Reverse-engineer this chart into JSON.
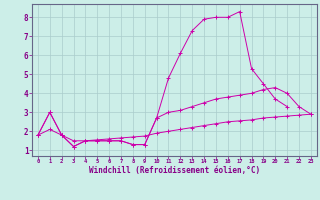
{
  "title": "",
  "xlabel": "Windchill (Refroidissement éolien,°C)",
  "ylabel": "",
  "bg_color": "#cceee8",
  "plot_bg_color": "#cceee8",
  "line_color": "#cc00aa",
  "grid_color": "#aacccc",
  "spine_color": "#666688",
  "label_color": "#880088",
  "xlim": [
    -0.5,
    23.5
  ],
  "ylim": [
    0.7,
    8.7
  ],
  "xticks": [
    0,
    1,
    2,
    3,
    4,
    5,
    6,
    7,
    8,
    9,
    10,
    11,
    12,
    13,
    14,
    15,
    16,
    17,
    18,
    19,
    20,
    21,
    22,
    23
  ],
  "yticks": [
    1,
    2,
    3,
    4,
    5,
    6,
    7,
    8
  ],
  "series": [
    {
      "x": [
        0,
        1,
        2,
        3,
        4,
        5,
        6,
        7,
        8,
        9,
        10,
        11,
        12,
        13,
        14,
        15,
        16,
        17,
        18,
        19,
        20,
        21
      ],
      "y": [
        1.8,
        3.0,
        1.8,
        1.2,
        1.5,
        1.5,
        1.5,
        1.5,
        1.3,
        1.3,
        2.7,
        4.8,
        6.1,
        7.3,
        7.9,
        8.0,
        8.0,
        8.3,
        5.3,
        4.5,
        3.7,
        3.3
      ]
    },
    {
      "x": [
        0,
        1,
        2,
        3,
        4,
        5,
        6,
        7,
        8,
        9,
        10,
        11,
        12,
        13,
        14,
        15,
        16,
        17,
        18,
        19,
        20,
        21,
        22,
        23
      ],
      "y": [
        1.8,
        3.0,
        1.8,
        1.2,
        1.5,
        1.5,
        1.5,
        1.5,
        1.3,
        1.3,
        2.7,
        3.0,
        3.1,
        3.3,
        3.5,
        3.7,
        3.8,
        3.9,
        4.0,
        4.2,
        4.3,
        4.0,
        3.3,
        2.9
      ]
    },
    {
      "x": [
        0,
        1,
        2,
        3,
        4,
        5,
        6,
        7,
        8,
        9,
        10,
        11,
        12,
        13,
        14,
        15,
        16,
        17,
        18,
        19,
        20,
        21,
        22,
        23
      ],
      "y": [
        1.8,
        2.1,
        1.8,
        1.5,
        1.5,
        1.55,
        1.6,
        1.65,
        1.7,
        1.75,
        1.9,
        2.0,
        2.1,
        2.2,
        2.3,
        2.4,
        2.5,
        2.55,
        2.6,
        2.7,
        2.75,
        2.8,
        2.85,
        2.9
      ]
    }
  ]
}
